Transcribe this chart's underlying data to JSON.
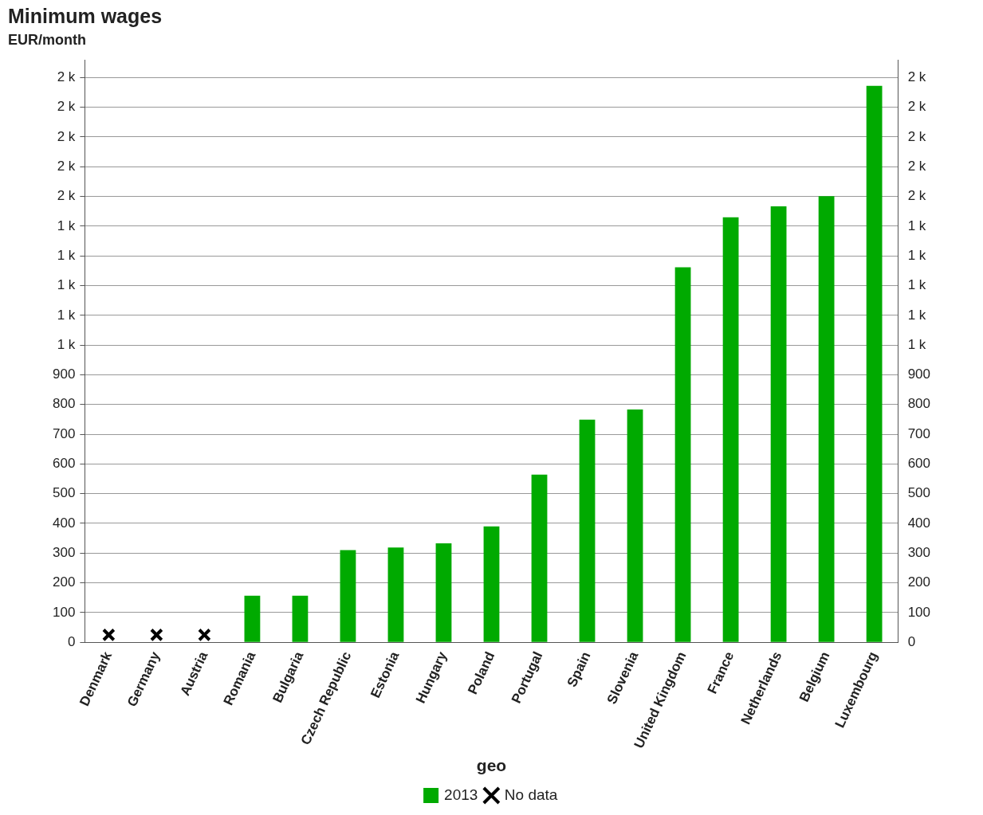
{
  "chart_data": {
    "type": "bar",
    "title": "Minimum wages",
    "subtitle": "EUR/month",
    "xlabel": "geo",
    "categories": [
      "Denmark",
      "Germany",
      "Austria",
      "Romania",
      "Bulgaria",
      "Czech Republic",
      "Estonia",
      "Hungary",
      "Poland",
      "Portugal",
      "Spain",
      "Slovenia",
      "United Kingdom",
      "France",
      "Netherlands",
      "Belgium",
      "Luxembourg"
    ],
    "series": [
      {
        "name": "2013",
        "color": "#00aa00",
        "values": [
          null,
          null,
          null,
          157,
          157,
          310,
          319,
          333,
          390,
          564,
          749,
          783,
          1262,
          1430,
          1467,
          1501,
          1872
        ]
      },
      {
        "name": "No data",
        "type": "scatter",
        "marker": "cross",
        "color": "#000000",
        "values": [
          25,
          25,
          25,
          null,
          null,
          null,
          null,
          null,
          null,
          null,
          null,
          null,
          null,
          null,
          null,
          null,
          null
        ]
      }
    ],
    "ylim": [
      0,
      1960
    ],
    "yticks": [
      0,
      100,
      200,
      300,
      400,
      500,
      600,
      700,
      800,
      900,
      {
        "value": 1000,
        "label": "1 k"
      },
      {
        "value": 1100,
        "label": "1 k"
      },
      {
        "value": 1200,
        "label": "1 k"
      },
      {
        "value": 1300,
        "label": "1 k"
      },
      {
        "value": 1400,
        "label": "1 k"
      },
      {
        "value": 1500,
        "label": "2 k"
      },
      {
        "value": 1600,
        "label": "2 k"
      },
      {
        "value": 1700,
        "label": "2 k"
      },
      {
        "value": 1800,
        "label": "2 k"
      },
      {
        "value": 1900,
        "label": "2 k"
      }
    ],
    "y2lim": [
      0,
      1960
    ],
    "y2ticks": [
      0,
      100,
      200,
      300,
      400,
      500,
      600,
      700,
      800,
      900,
      {
        "value": 1000,
        "label": "1 k"
      },
      {
        "value": 1100,
        "label": "1 k"
      },
      {
        "value": 1200,
        "label": "1 k"
      },
      {
        "value": 1300,
        "label": "1 k"
      },
      {
        "value": 1400,
        "label": "1 k"
      },
      {
        "value": 1500,
        "label": "2 k"
      },
      {
        "value": 1600,
        "label": "2 k"
      },
      {
        "value": 1700,
        "label": "2 k"
      },
      {
        "value": 1800,
        "label": "2 k"
      },
      {
        "value": 1900,
        "label": "2 k"
      }
    ],
    "grid": "y",
    "legend": "bottom"
  }
}
